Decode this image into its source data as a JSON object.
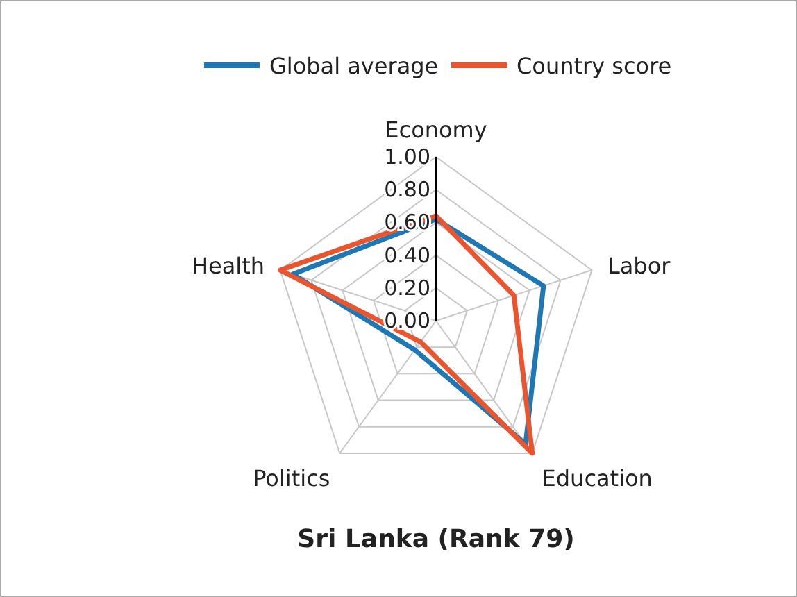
{
  "chart_data": {
    "type": "radar",
    "title": "Sri Lanka (Rank 79)",
    "categories": [
      "Economy",
      "Labor",
      "Education",
      "Politics",
      "Health"
    ],
    "series": [
      {
        "name": "Global average",
        "color": "#1f77b4",
        "values": [
          0.62,
          0.69,
          0.93,
          0.22,
          0.92
        ]
      },
      {
        "name": "Country score",
        "color": "#e8552f",
        "values": [
          0.64,
          0.5,
          1.0,
          0.16,
          1.0
        ]
      }
    ],
    "ylim": [
      0,
      1
    ],
    "yticks": [
      {
        "value": 0,
        "label": "0.00"
      },
      {
        "value": 0.2,
        "label": "0.20"
      },
      {
        "value": 0.4,
        "label": "0.40"
      },
      {
        "value": 0.6,
        "label": "0.60"
      },
      {
        "value": 0.8,
        "label": "0.80"
      },
      {
        "value": 1,
        "label": "1.00"
      }
    ],
    "grid": true,
    "legend": "top"
  }
}
